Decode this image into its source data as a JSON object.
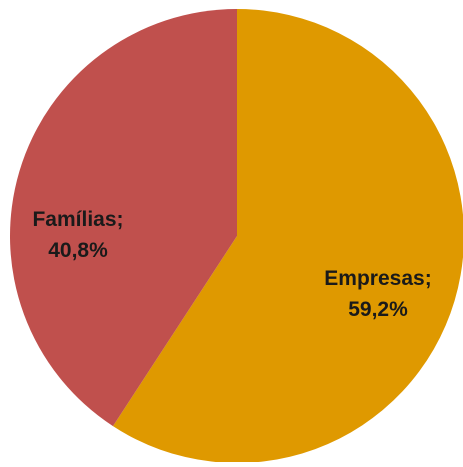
{
  "chart_data": {
    "type": "pie",
    "slices": [
      {
        "name": "Empresas",
        "value": 59.2,
        "label_line1": "Empresas;",
        "label_line2": "59,2%",
        "color": "#DF9900"
      },
      {
        "name": "Famílias",
        "value": 40.8,
        "label_line1": "Famílias;",
        "label_line2": "40,8%",
        "color": "#C0504D"
      }
    ]
  }
}
